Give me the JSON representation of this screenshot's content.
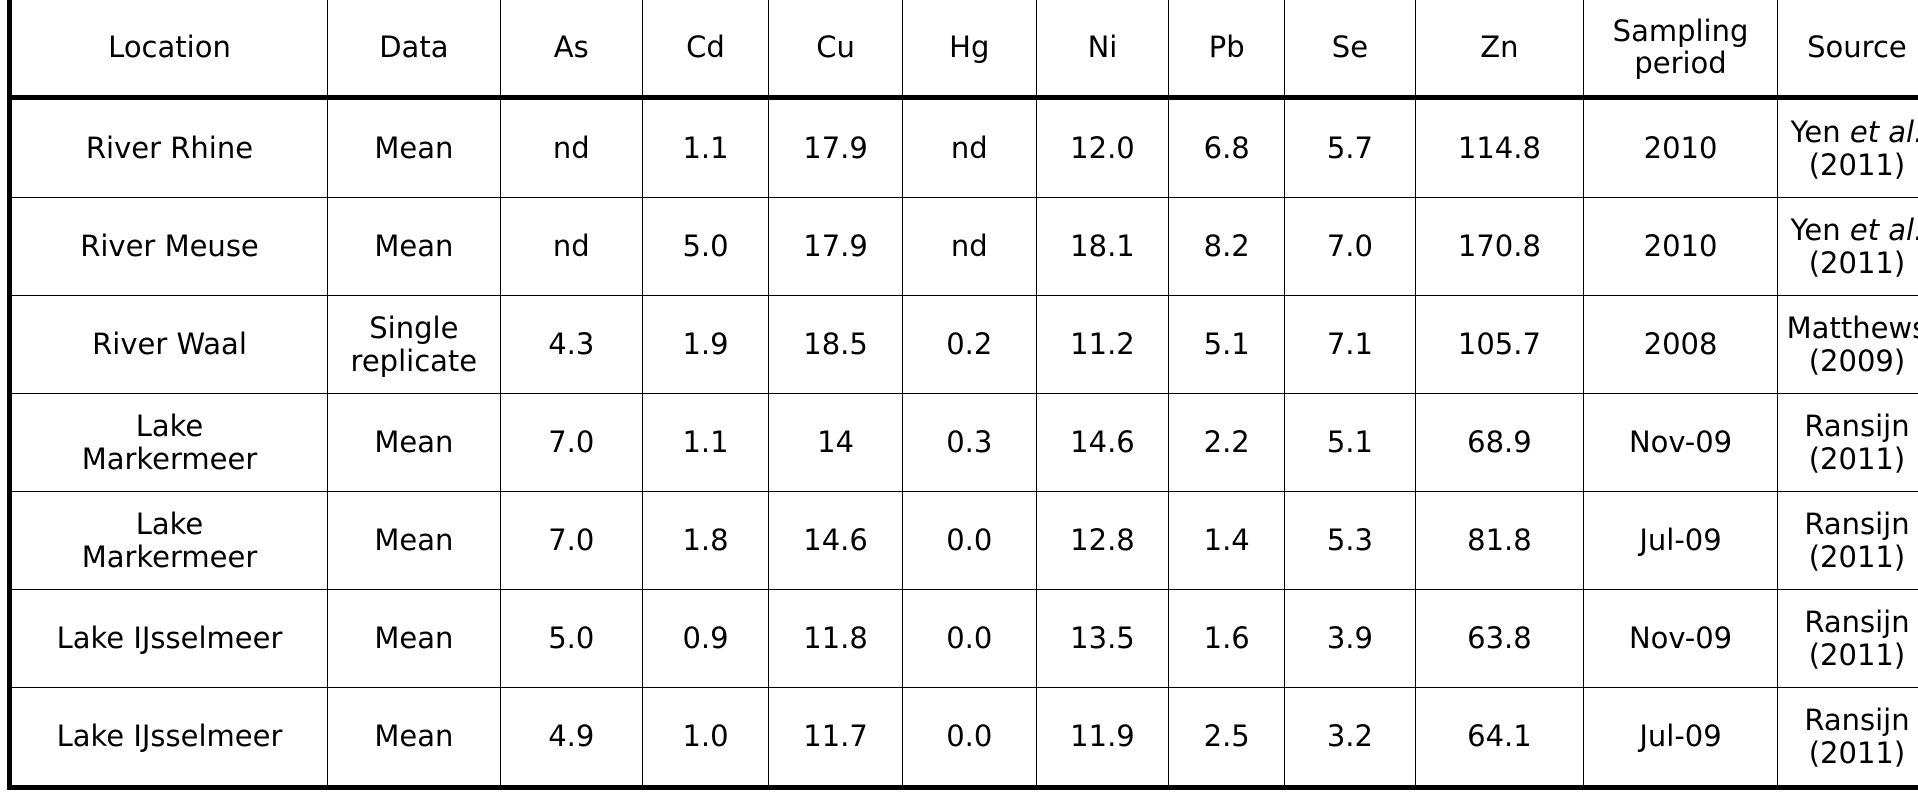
{
  "table": {
    "headers": [
      "Location",
      "Data",
      "As",
      "Cd",
      "Cu",
      "Hg",
      "Ni",
      "Pb",
      "Se",
      "Zn",
      "Sampling\nperiod",
      "Source"
    ],
    "rows": [
      {
        "location": "River Rhine",
        "data": "Mean",
        "as": "nd",
        "cd": "1.1",
        "cu": "17.9",
        "hg": "nd",
        "ni": "12.0",
        "pb": "6.8",
        "se": "5.7",
        "zn": "114.8",
        "period": "2010",
        "source_author": "Yen",
        "source_etal": " et al.",
        "source_year": "(2011)"
      },
      {
        "location": "River Meuse",
        "data": "Mean",
        "as": "nd",
        "cd": "5.0",
        "cu": "17.9",
        "hg": "nd",
        "ni": "18.1",
        "pb": "8.2",
        "se": "7.0",
        "zn": "170.8",
        "period": "2010",
        "source_author": "Yen",
        "source_etal": " et al.",
        "source_year": "(2011)"
      },
      {
        "location": "River Waal",
        "data": "Single\nreplicate",
        "as": "4.3",
        "cd": "1.9",
        "cu": "18.5",
        "hg": "0.2",
        "ni": "11.2",
        "pb": "5.1",
        "se": "7.1",
        "zn": "105.7",
        "period": "2008",
        "source_author": "Matthews",
        "source_etal": "",
        "source_year": "(2009)"
      },
      {
        "location": "Lake\nMarkermeer",
        "data": "Mean",
        "as": "7.0",
        "cd": "1.1",
        "cu": "14",
        "hg": "0.3",
        "ni": "14.6",
        "pb": "2.2",
        "se": "5.1",
        "zn": "68.9",
        "period": "Nov-09",
        "source_author": "Ransijn",
        "source_etal": "",
        "source_year": "(2011)"
      },
      {
        "location": "Lake\nMarkermeer",
        "data": "Mean",
        "as": "7.0",
        "cd": "1.8",
        "cu": "14.6",
        "hg": "0.0",
        "ni": "12.8",
        "pb": "1.4",
        "se": "5.3",
        "zn": "81.8",
        "period": "Jul-09",
        "source_author": "Ransijn",
        "source_etal": "",
        "source_year": "(2011)"
      },
      {
        "location": "Lake IJsselmeer",
        "data": "Mean",
        "as": "5.0",
        "cd": "0.9",
        "cu": "11.8",
        "hg": "0.0",
        "ni": "13.5",
        "pb": "1.6",
        "se": "3.9",
        "zn": "63.8",
        "period": "Nov-09",
        "source_author": "Ransijn",
        "source_etal": "",
        "source_year": "(2011)"
      },
      {
        "location": "Lake IJsselmeer",
        "data": "Mean",
        "as": "4.9",
        "cd": "1.0",
        "cu": "11.7",
        "hg": "0.0",
        "ni": "11.9",
        "pb": "2.5",
        "se": "3.2",
        "zn": "64.1",
        "period": "Jul-09",
        "source_author": "Ransijn",
        "source_etal": "",
        "source_year": "(2011)"
      }
    ]
  }
}
